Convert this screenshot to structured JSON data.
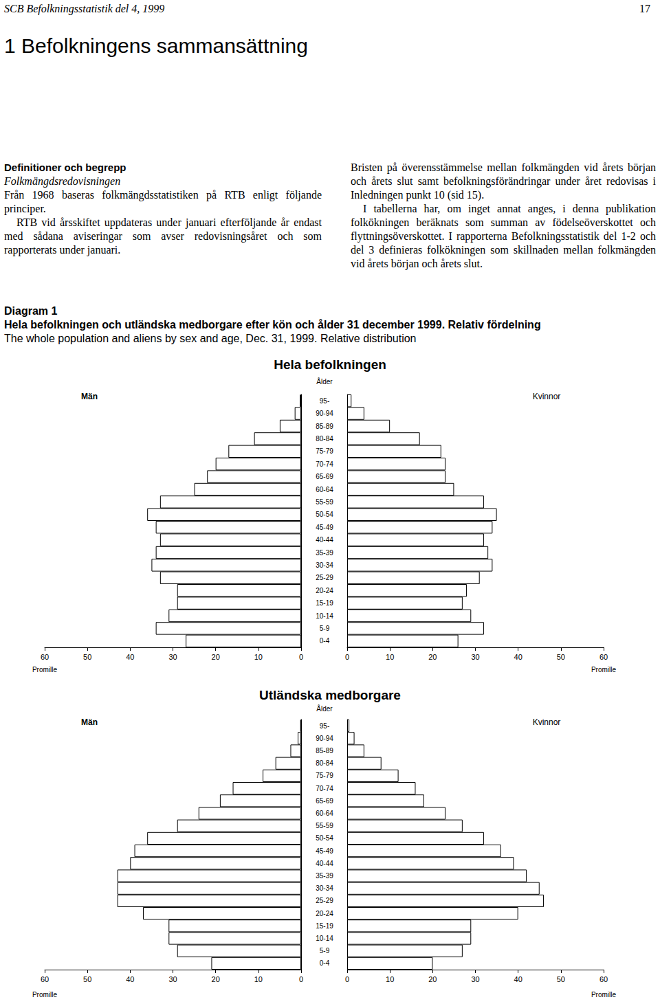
{
  "header": {
    "left": "SCB Befolkningsstatistik del 4, 1999",
    "page": "17"
  },
  "section_title": "1 Befolkningens sammansättning",
  "left_column": {
    "heading": "Definitioner och begrepp",
    "subheading": "Folkmängdsredovisningen",
    "paragraphs": [
      "Från 1968 baseras folkmängdsstatistiken på RTB enligt följande principer.",
      "RTB vid årsskiftet uppdateras under januari efterföljande år endast med sådana aviseringar som avser redovisningsåret och som rapporterats under januari."
    ]
  },
  "right_column": {
    "paragraphs": [
      "Bristen på överensstämmelse mellan folkmängden vid årets början och årets slut samt befolkningsförändringar under året redovisas i Inledningen punkt 10 (sid 15).",
      "I tabellerna har, om inget annat anges, i denna publikation folkökningen beräknats som summan av födelseöverskottet och flyttningsöverskottet. I rapporterna Befolkningsstatistik del 1-2 och del 3 definieras folkökningen som skillnaden mellan folkmängden vid årets början och årets slut."
    ]
  },
  "diagram": {
    "label": "Diagram 1",
    "title_sv": "Hela befolkningen och utländska medborgare efter kön och ålder 31 december 1999. Relativ fördelning",
    "title_en": "The whole population and aliens by sex and age, Dec. 31, 1999. Relative distribution"
  },
  "chart_data": [
    {
      "type": "bar",
      "orientation": "horizontal",
      "title": "Hela befolkningen",
      "y_label": "Ålder",
      "x_label": "Promille",
      "categories": [
        "0-4",
        "5-9",
        "10-14",
        "15-19",
        "20-24",
        "25-29",
        "30-34",
        "35-39",
        "40-44",
        "45-49",
        "50-54",
        "55-59",
        "60-64",
        "65-69",
        "70-74",
        "75-79",
        "80-84",
        "85-89",
        "90-94",
        "95-"
      ],
      "series": [
        {
          "name": "Män",
          "color": "#ffffff",
          "values": [
            27,
            34,
            31,
            29,
            29,
            33,
            35,
            34,
            33,
            34,
            36,
            33,
            25,
            22,
            20,
            17,
            11,
            5,
            1.5,
            0.3
          ]
        },
        {
          "name": "Kvinnor",
          "color": "#ffffff",
          "values": [
            26,
            32,
            29,
            27,
            28,
            31,
            34,
            33,
            32,
            34,
            35,
            32,
            25,
            23,
            23,
            22,
            17,
            10,
            4,
            1
          ]
        }
      ],
      "xlim": [
        0,
        60
      ],
      "xticks": [
        0,
        10,
        20,
        30,
        40,
        50,
        60
      ]
    },
    {
      "type": "bar",
      "orientation": "horizontal",
      "title": "Utländska medborgare",
      "y_label": "Ålder",
      "x_label": "Promille",
      "categories": [
        "0-4",
        "5-9",
        "10-14",
        "15-19",
        "20-24",
        "25-29",
        "30-34",
        "35-39",
        "40-44",
        "45-49",
        "50-54",
        "55-59",
        "60-64",
        "65-69",
        "70-74",
        "75-79",
        "80-84",
        "85-89",
        "90-94",
        "95-"
      ],
      "series": [
        {
          "name": "Män",
          "color": "#ffffff",
          "values": [
            21,
            29,
            31,
            31,
            37,
            43,
            43,
            43,
            40,
            39,
            36,
            29,
            24,
            19,
            16,
            9,
            6,
            2.5,
            0.8,
            0.2
          ]
        },
        {
          "name": "Kvinnor",
          "color": "#ffffff",
          "values": [
            20,
            27,
            29,
            29,
            40,
            46,
            45,
            42,
            39,
            36,
            32,
            27,
            23,
            18,
            16,
            12,
            8,
            4,
            1.7,
            0.5
          ]
        }
      ],
      "xlim": [
        0,
        60
      ],
      "xticks": [
        0,
        10,
        20,
        30,
        40,
        50,
        60
      ]
    }
  ]
}
